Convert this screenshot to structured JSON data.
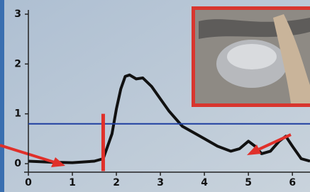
{
  "chart_data": {
    "type": "line",
    "x": [
      0,
      0.5,
      1,
      1.5,
      1.7,
      1.9,
      2.0,
      2.1,
      2.2,
      2.3,
      2.45,
      2.6,
      2.8,
      3.0,
      3.2,
      3.5,
      3.8,
      4.0,
      4.3,
      4.6,
      4.8,
      5.0,
      5.15,
      5.3,
      5.5,
      5.7,
      5.85,
      6.0,
      6.2,
      6.4
    ],
    "values": [
      0.05,
      0.03,
      0.02,
      0.05,
      0.1,
      0.6,
      1.1,
      1.5,
      1.75,
      1.78,
      1.7,
      1.72,
      1.55,
      1.3,
      1.05,
      0.75,
      0.6,
      0.5,
      0.35,
      0.25,
      0.3,
      0.45,
      0.35,
      0.2,
      0.25,
      0.45,
      0.55,
      0.35,
      0.1,
      0.05
    ],
    "color": "#111111",
    "xlim": [
      0,
      6.4
    ],
    "ylim": [
      0,
      3
    ],
    "xticks": [
      0,
      1,
      2,
      3,
      4,
      5,
      6
    ],
    "yticks": [
      0,
      1,
      2,
      3
    ],
    "threshold": {
      "value": 0.8,
      "color": "#1f3fa0"
    },
    "marker": {
      "x": 1.7,
      "from": -0.15,
      "to": 1.0,
      "color": "#e0302a"
    }
  }
}
